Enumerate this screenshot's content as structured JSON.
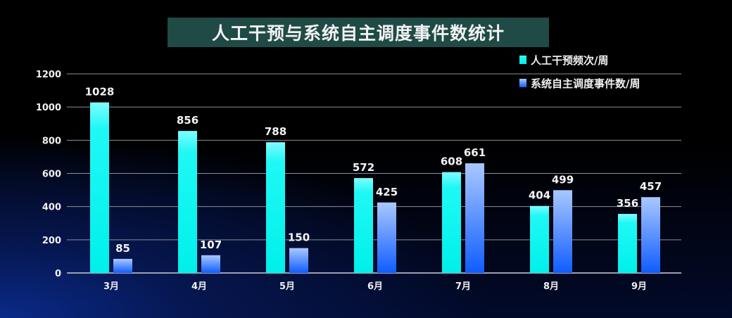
{
  "chart_data": {
    "type": "bar",
    "title": "人工干预与系统自主调度事件数统计",
    "categories": [
      "3月",
      "4月",
      "5月",
      "6月",
      "7月",
      "8月",
      "9月"
    ],
    "series": [
      {
        "name": "人工干预频次/周",
        "values": [
          1028,
          856,
          788,
          572,
          608,
          404,
          356
        ],
        "color": "#00f5f0"
      },
      {
        "name": "系统自主调度事件数/周",
        "values": [
          85,
          107,
          150,
          425,
          661,
          499,
          457
        ],
        "color": "#2a72ff"
      }
    ],
    "ylim": [
      0,
      1200
    ],
    "yticks": [
      0,
      200,
      400,
      600,
      800,
      1000,
      1200
    ],
    "grid": true,
    "legend": "top-right",
    "data_labels": true
  }
}
